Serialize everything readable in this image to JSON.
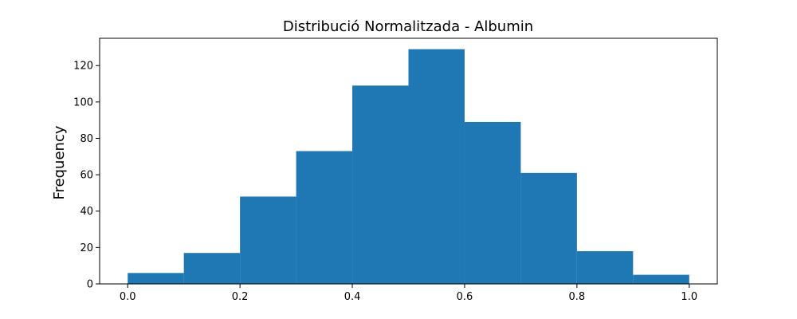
{
  "chart_data": {
    "type": "bar",
    "title": "Distribució Normalitzada - Albumin",
    "xlabel": "",
    "ylabel": "Frequency",
    "bins": [
      {
        "start": 0.0,
        "end": 0.1,
        "count": 6
      },
      {
        "start": 0.1,
        "end": 0.2,
        "count": 17
      },
      {
        "start": 0.2,
        "end": 0.3,
        "count": 48
      },
      {
        "start": 0.3,
        "end": 0.4,
        "count": 73
      },
      {
        "start": 0.4,
        "end": 0.5,
        "count": 109
      },
      {
        "start": 0.5,
        "end": 0.6,
        "count": 129
      },
      {
        "start": 0.6,
        "end": 0.7,
        "count": 89
      },
      {
        "start": 0.7,
        "end": 0.8,
        "count": 61
      },
      {
        "start": 0.8,
        "end": 0.9,
        "count": 18
      },
      {
        "start": 0.9,
        "end": 1.0,
        "count": 5
      }
    ],
    "xlim": [
      -0.05,
      1.05
    ],
    "ylim": [
      0,
      135
    ],
    "xticks": [
      "0.0",
      "0.2",
      "0.4",
      "0.6",
      "0.8",
      "1.0"
    ],
    "yticks": [
      "0",
      "20",
      "40",
      "60",
      "80",
      "100",
      "120"
    ],
    "grid": false,
    "bar_color": "#1f77b4"
  }
}
